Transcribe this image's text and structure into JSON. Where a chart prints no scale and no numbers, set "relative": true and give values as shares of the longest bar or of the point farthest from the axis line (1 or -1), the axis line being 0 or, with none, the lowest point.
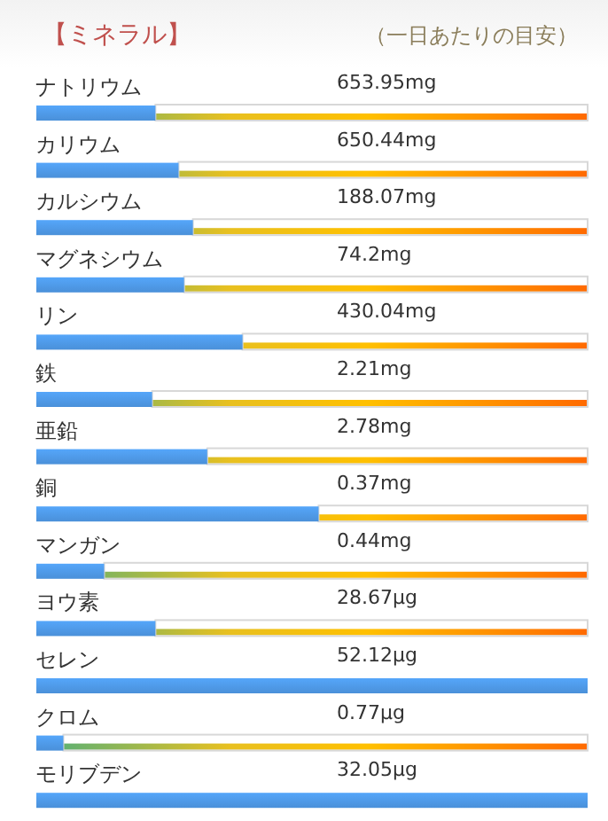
{
  "chart_data": {
    "type": "bar",
    "orientation": "horizontal",
    "relative": true,
    "title": "【ミネラル】",
    "subtitle": "（一日あたりの目安）",
    "categories": [
      "ナトリウム",
      "カリウム",
      "カルシウム",
      "マグネシウム",
      "リン",
      "鉄",
      "亜鉛",
      "銅",
      "マンガン",
      "ヨウ素",
      "セレン",
      "クロム",
      "モリブデン"
    ],
    "values": [
      0.216,
      0.258,
      0.284,
      0.268,
      0.374,
      0.21,
      0.31,
      0.512,
      0.123,
      0.216,
      1,
      0.049,
      1
    ],
    "annotations": [
      "653.95mg",
      "650.44mg",
      "188.07mg",
      "74.2mg",
      "430.04mg",
      "2.21mg",
      "2.78mg",
      "0.37mg",
      "0.44mg",
      "28.67μg",
      "52.12μg",
      "0.77μg",
      "32.05μg"
    ],
    "color": "#4a90d9"
  }
}
